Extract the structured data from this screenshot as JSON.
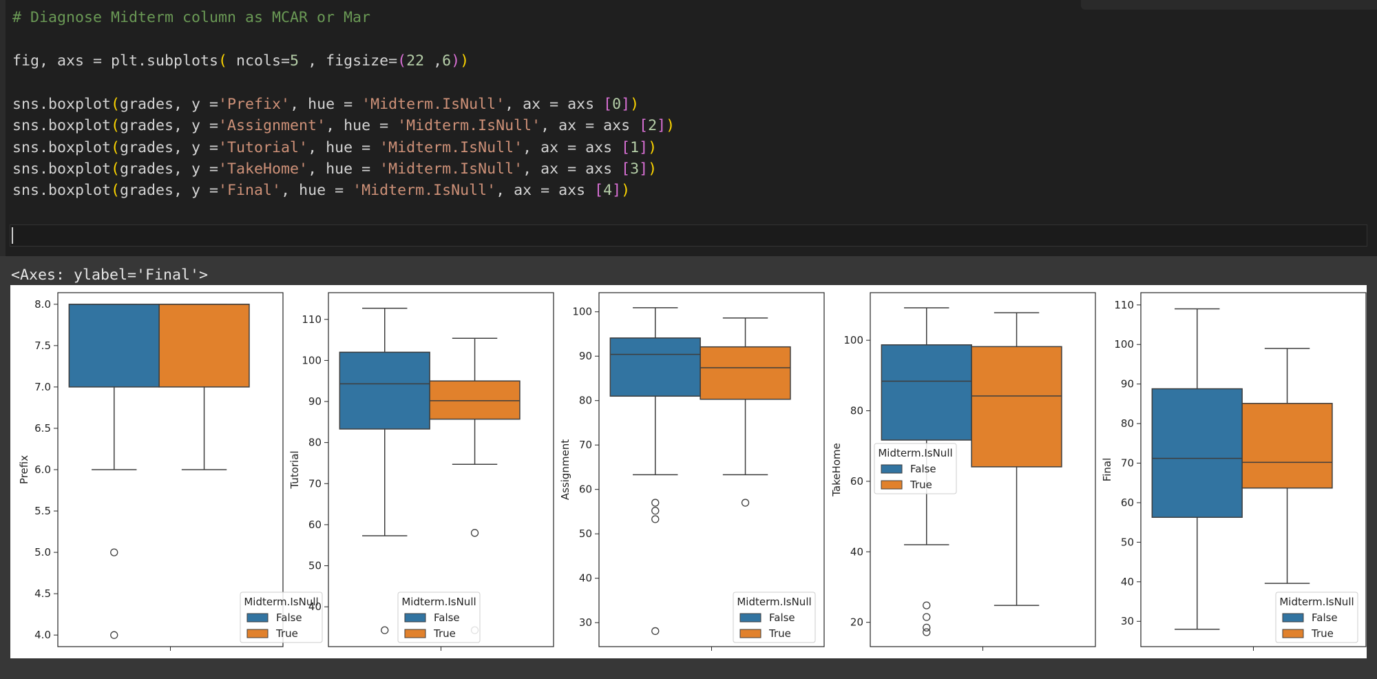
{
  "editor": {
    "lines": [
      [
        {
          "t": "# Diagnose Midterm column as MCAR or Mar",
          "c": "c-comment"
        }
      ],
      [],
      [
        {
          "t": "fig, axs = plt.subplots"
        },
        {
          "t": "(",
          "c": "c-paren"
        },
        {
          "t": " ncols="
        },
        {
          "t": "5",
          "c": "c-num"
        },
        {
          "t": " , figsize="
        },
        {
          "t": "(",
          "c": "c-brk"
        },
        {
          "t": "22",
          "c": "c-num"
        },
        {
          "t": " ,"
        },
        {
          "t": "6",
          "c": "c-num"
        },
        {
          "t": ")",
          "c": "c-brk"
        },
        {
          "t": ")",
          "c": "c-paren"
        }
      ],
      [],
      [
        {
          "t": "sns.boxplot"
        },
        {
          "t": "(",
          "c": "c-paren"
        },
        {
          "t": "grades, y ="
        },
        {
          "t": "'Prefix'",
          "c": "c-str"
        },
        {
          "t": ", hue = "
        },
        {
          "t": "'Midterm.IsNull'",
          "c": "c-str"
        },
        {
          "t": ", ax = axs "
        },
        {
          "t": "[",
          "c": "c-brk"
        },
        {
          "t": "0",
          "c": "c-num"
        },
        {
          "t": "]",
          "c": "c-brk"
        },
        {
          "t": ")",
          "c": "c-paren"
        }
      ],
      [
        {
          "t": "sns.boxplot"
        },
        {
          "t": "(",
          "c": "c-paren"
        },
        {
          "t": "grades, y ="
        },
        {
          "t": "'Assignment'",
          "c": "c-str"
        },
        {
          "t": ", hue = "
        },
        {
          "t": "'Midterm.IsNull'",
          "c": "c-str"
        },
        {
          "t": ", ax = axs "
        },
        {
          "t": "[",
          "c": "c-brk"
        },
        {
          "t": "2",
          "c": "c-num"
        },
        {
          "t": "]",
          "c": "c-brk"
        },
        {
          "t": ")",
          "c": "c-paren"
        }
      ],
      [
        {
          "t": "sns.boxplot"
        },
        {
          "t": "(",
          "c": "c-paren"
        },
        {
          "t": "grades, y ="
        },
        {
          "t": "'Tutorial'",
          "c": "c-str"
        },
        {
          "t": ", hue = "
        },
        {
          "t": "'Midterm.IsNull'",
          "c": "c-str"
        },
        {
          "t": ", ax = axs "
        },
        {
          "t": "[",
          "c": "c-brk"
        },
        {
          "t": "1",
          "c": "c-num"
        },
        {
          "t": "]",
          "c": "c-brk"
        },
        {
          "t": ")",
          "c": "c-paren"
        }
      ],
      [
        {
          "t": "sns.boxplot"
        },
        {
          "t": "(",
          "c": "c-paren"
        },
        {
          "t": "grades, y ="
        },
        {
          "t": "'TakeHome'",
          "c": "c-str"
        },
        {
          "t": ", hue = "
        },
        {
          "t": "'Midterm.IsNull'",
          "c": "c-str"
        },
        {
          "t": ", ax = axs "
        },
        {
          "t": "[",
          "c": "c-brk"
        },
        {
          "t": "3",
          "c": "c-num"
        },
        {
          "t": "]",
          "c": "c-brk"
        },
        {
          "t": ")",
          "c": "c-paren"
        }
      ],
      [
        {
          "t": "sns.boxplot"
        },
        {
          "t": "(",
          "c": "c-paren"
        },
        {
          "t": "grades, y ="
        },
        {
          "t": "'Final'",
          "c": "c-str"
        },
        {
          "t": ", hue = "
        },
        {
          "t": "'Midterm.IsNull'",
          "c": "c-str"
        },
        {
          "t": ", ax = axs "
        },
        {
          "t": "[",
          "c": "c-brk"
        },
        {
          "t": "4",
          "c": "c-num"
        },
        {
          "t": "]",
          "c": "c-brk"
        },
        {
          "t": ")",
          "c": "c-paren"
        }
      ]
    ]
  },
  "output": {
    "repr": "<Axes: ylabel='Final'>"
  },
  "colors": {
    "false_box": "#3274a1",
    "true_box": "#e1812c",
    "line": "#3d3d3d"
  },
  "chart_data": [
    {
      "type": "box",
      "ylabel": "Prefix",
      "ylim": [
        3.86,
        8.14
      ],
      "ticks": [
        4.0,
        4.5,
        5.0,
        5.5,
        6.0,
        6.5,
        7.0,
        7.5,
        8.0
      ],
      "legend": "lower right",
      "legend_title": "Midterm.IsNull",
      "series": [
        {
          "name": "False",
          "whislo": 6.0,
          "q1": 7.0,
          "med": 8.0,
          "q3": 8.0,
          "whishi": 8.0,
          "fliers": [
            5.0,
            4.0
          ]
        },
        {
          "name": "True",
          "whislo": 6.0,
          "q1": 7.0,
          "med": 8.0,
          "q3": 8.0,
          "whishi": 8.0,
          "fliers": []
        }
      ]
    },
    {
      "type": "box",
      "ylabel": "Tutorial",
      "ylim": [
        30.3,
        116.5
      ],
      "ticks": [
        40,
        50,
        60,
        70,
        80,
        90,
        100,
        110
      ],
      "legend": "lower center",
      "legend_title": "Midterm.IsNull",
      "series": [
        {
          "name": "False",
          "whislo": 57.3,
          "q1": 83.3,
          "med": 94.3,
          "q3": 102.0,
          "whishi": 112.7,
          "fliers": [
            34.3
          ]
        },
        {
          "name": "True",
          "whislo": 74.7,
          "q1": 85.7,
          "med": 90.2,
          "q3": 95.0,
          "whishi": 105.4,
          "fliers": [
            58.0,
            34.3
          ]
        }
      ]
    },
    {
      "type": "box",
      "ylabel": "Assignment",
      "ylim": [
        24.6,
        104.3
      ],
      "ticks": [
        30,
        40,
        50,
        60,
        70,
        80,
        90,
        100
      ],
      "legend": "lower right",
      "legend_title": "Midterm.IsNull",
      "series": [
        {
          "name": "False",
          "whislo": 63.3,
          "q1": 81.0,
          "med": 90.4,
          "q3": 94.1,
          "whishi": 100.9,
          "fliers": [
            57.0,
            55.2,
            53.3,
            28.1
          ]
        },
        {
          "name": "True",
          "whislo": 63.3,
          "q1": 80.3,
          "med": 87.4,
          "q3": 92.1,
          "whishi": 98.6,
          "fliers": [
            57.0
          ]
        }
      ]
    },
    {
      "type": "box",
      "ylabel": "TakeHome",
      "ylim": [
        13.1,
        113.5
      ],
      "ticks": [
        20,
        40,
        60,
        80,
        100
      ],
      "legend": "center left",
      "legend_title": "Midterm.IsNull",
      "series": [
        {
          "name": "False",
          "whislo": 42.0,
          "q1": 71.7,
          "med": 88.4,
          "q3": 98.7,
          "whishi": 109.2,
          "fliers": [
            24.8,
            21.5,
            18.5,
            17.2
          ]
        },
        {
          "name": "True",
          "whislo": 24.8,
          "q1": 64.1,
          "med": 84.2,
          "q3": 98.2,
          "whishi": 107.8,
          "fliers": []
        }
      ]
    },
    {
      "type": "box",
      "ylabel": "Final",
      "ylim": [
        23.6,
        113.1
      ],
      "ticks": [
        30,
        40,
        50,
        60,
        70,
        80,
        90,
        100,
        110
      ],
      "legend": "lower right",
      "legend_title": "Midterm.IsNull",
      "series": [
        {
          "name": "False",
          "whislo": 28.0,
          "q1": 56.3,
          "med": 71.2,
          "q3": 88.8,
          "whishi": 109.0,
          "fliers": []
        },
        {
          "name": "True",
          "whislo": 39.6,
          "q1": 63.7,
          "med": 70.2,
          "q3": 85.1,
          "whishi": 99.0,
          "fliers": []
        }
      ]
    }
  ]
}
